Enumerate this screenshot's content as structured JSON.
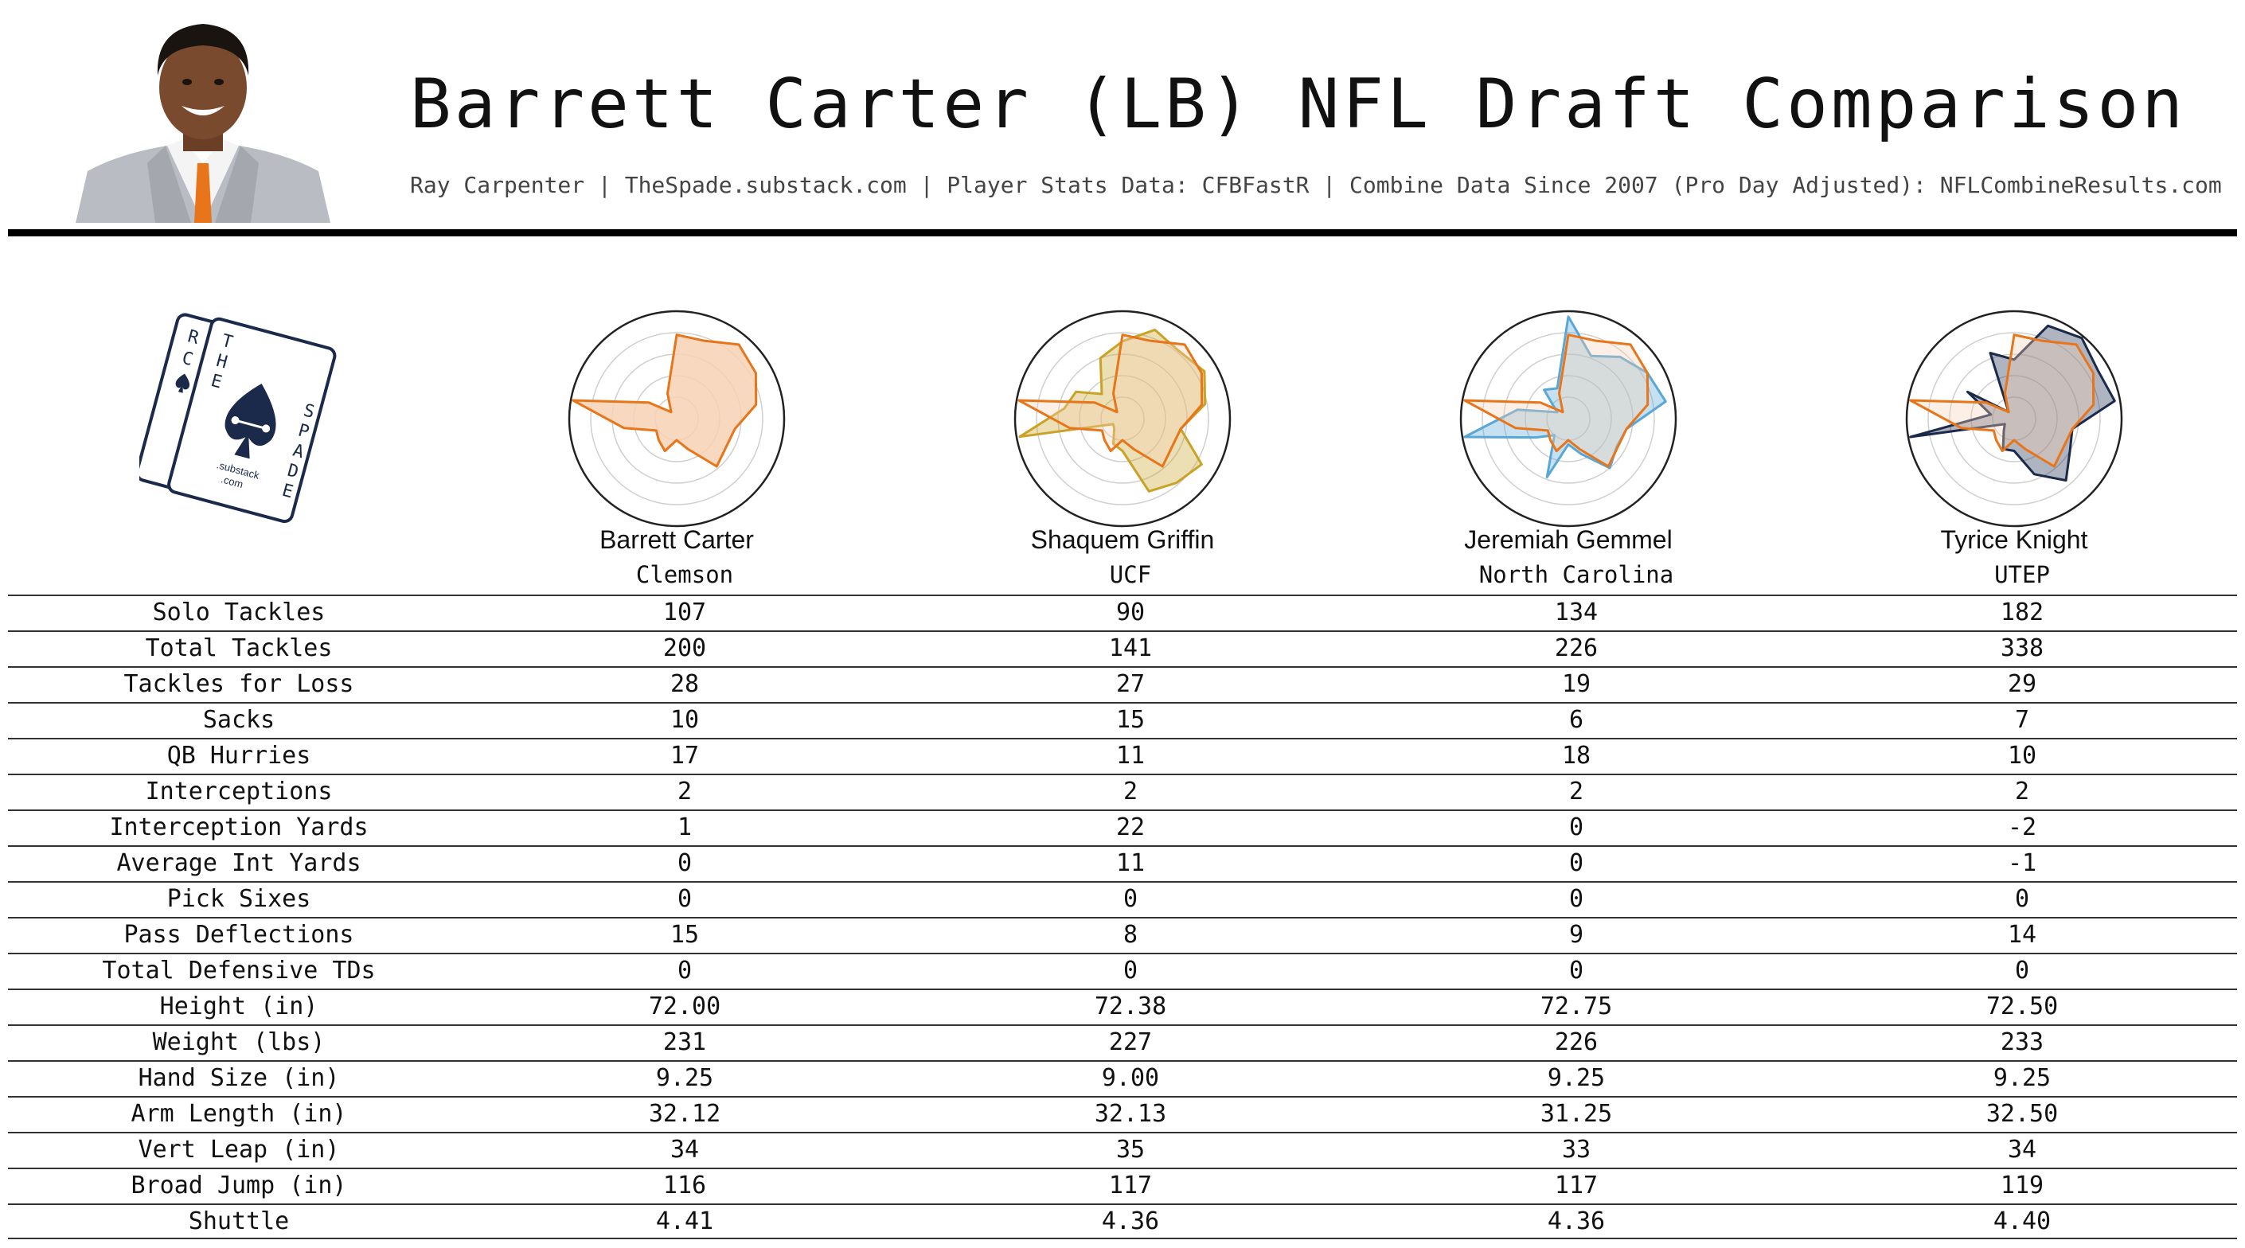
{
  "header": {
    "title": "Barrett Carter (LB) NFL Draft Comparison",
    "subtitle": "Ray Carpenter | TheSpade.substack.com | Player Stats Data: CFBFastR | Combine Data Since 2007 (Pro Day Adjusted): NFLCombineResults.com"
  },
  "logo": {
    "letters_left": [
      "R",
      "C"
    ],
    "letters_the": [
      "T",
      "H",
      "E"
    ],
    "letters_spade": [
      "S",
      "P",
      "A",
      "D",
      "E"
    ],
    "brand_line1": ".substack",
    "brand_line2": ".com"
  },
  "colors": {
    "carter": "#e8751a",
    "carter_fill": "#f7d2b5",
    "griffin": "#c9a227",
    "gemmel": "#5aa7d6",
    "knight": "#1b2a4a",
    "logo_navy": "#1b2a4a"
  },
  "players": [
    {
      "name": "Barrett Carter",
      "school": "Clemson"
    },
    {
      "name": "Shaquem Griffin",
      "school": "UCF"
    },
    {
      "name": "Jeremiah Gemmel",
      "school": "North Carolina"
    },
    {
      "name": "Tyrice Knight",
      "school": "UTEP"
    }
  ],
  "stats": [
    {
      "label": "Solo Tackles",
      "values": [
        "107",
        "90",
        "134",
        "182"
      ]
    },
    {
      "label": "Total Tackles",
      "values": [
        "200",
        "141",
        "226",
        "338"
      ]
    },
    {
      "label": "Tackles for Loss",
      "values": [
        "28",
        "27",
        "19",
        "29"
      ]
    },
    {
      "label": "Sacks",
      "values": [
        "10",
        "15",
        "6",
        "7"
      ]
    },
    {
      "label": "QB Hurries",
      "values": [
        "17",
        "11",
        "18",
        "10"
      ]
    },
    {
      "label": "Interceptions",
      "values": [
        "2",
        "2",
        "2",
        "2"
      ]
    },
    {
      "label": "Interception Yards",
      "values": [
        "1",
        "22",
        "0",
        "-2"
      ]
    },
    {
      "label": "Average Int Yards",
      "values": [
        "0",
        "11",
        "0",
        "-1"
      ]
    },
    {
      "label": "Pick Sixes",
      "values": [
        "0",
        "0",
        "0",
        "0"
      ]
    },
    {
      "label": "Pass Deflections",
      "values": [
        "15",
        "8",
        "9",
        "14"
      ]
    },
    {
      "label": "Total Defensive TDs",
      "values": [
        "0",
        "0",
        "0",
        "0"
      ]
    },
    {
      "label": "Height (in)",
      "values": [
        "72.00",
        "72.38",
        "72.75",
        "72.50"
      ]
    },
    {
      "label": "Weight (lbs)",
      "values": [
        "231",
        "227",
        "226",
        "233"
      ]
    },
    {
      "label": "Hand Size (in)",
      "values": [
        "9.25",
        "9.00",
        "9.25",
        "9.25"
      ]
    },
    {
      "label": "Arm Length (in)",
      "values": [
        "32.12",
        "32.13",
        "31.25",
        "32.50"
      ]
    },
    {
      "label": "Vert Leap (in)",
      "values": [
        "34",
        "35",
        "33",
        "34"
      ]
    },
    {
      "label": "Broad Jump (in)",
      "values": [
        "116",
        "117",
        "117",
        "119"
      ]
    },
    {
      "label": "Shuttle",
      "values": [
        "4.41",
        "4.36",
        "4.36",
        "4.40"
      ]
    }
  ],
  "chart_data": {
    "type": "radar",
    "grid_rings": 5,
    "rmax": 1.0,
    "axes_count": 18,
    "series": [
      {
        "player": "Barrett Carter",
        "values": [
          0.78,
          0.77,
          0.9,
          0.85,
          0.75,
          0.55,
          0.53,
          0.58,
          0.3,
          0.2,
          0.32,
          0.26,
          0.22,
          0.5,
          0.98,
          0.3,
          0.08,
          0.25
        ]
      },
      {
        "player": "Shaquem Griffin",
        "values": [
          0.72,
          0.88,
          0.82,
          0.88,
          0.78,
          0.55,
          0.85,
          0.78,
          0.72,
          0.3,
          0.25,
          0.12,
          0.1,
          0.97,
          0.55,
          0.5,
          0.3,
          0.6
        ]
      },
      {
        "player": "Jeremiah Gemmel",
        "values": [
          0.95,
          0.62,
          0.75,
          0.85,
          0.92,
          0.55,
          0.52,
          0.6,
          0.35,
          0.24,
          0.58,
          0.2,
          0.35,
          0.98,
          0.48,
          0.12,
          0.35,
          0.3
        ]
      },
      {
        "player": "Tyrice Knight",
        "values": [
          0.55,
          0.92,
          0.98,
          0.9,
          0.95,
          0.55,
          0.6,
          0.75,
          0.55,
          0.3,
          0.3,
          0.15,
          0.1,
          0.98,
          0.22,
          0.5,
          0.08,
          0.65
        ]
      }
    ]
  }
}
